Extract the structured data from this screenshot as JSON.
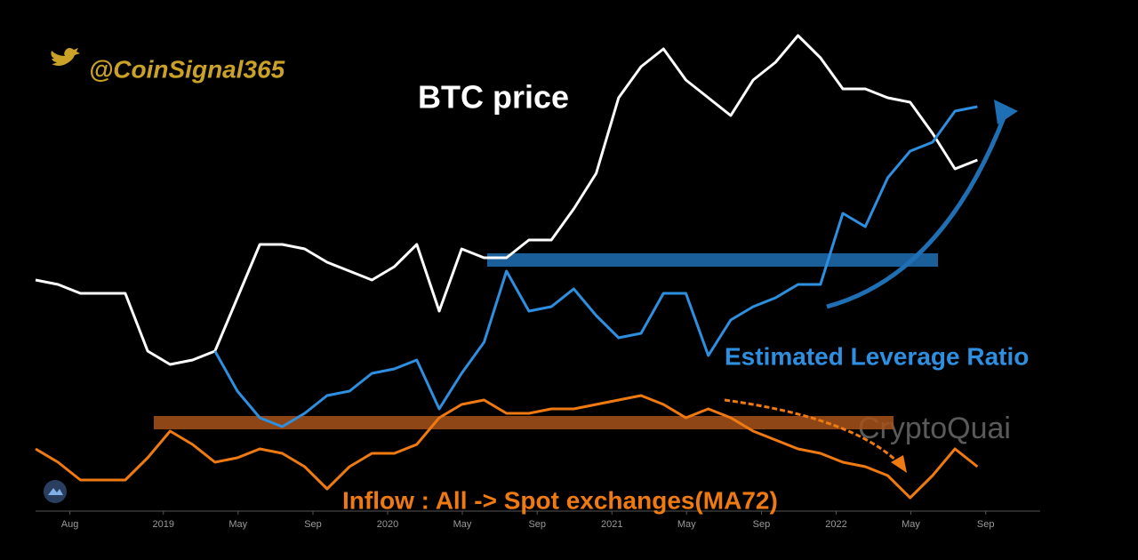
{
  "chart_data": {
    "type": "line",
    "handle": "@CoinSignal365",
    "watermark": "CryptoQuai",
    "x": [
      2018.43,
      2018.53,
      2018.63,
      2018.73,
      2018.83,
      2018.93,
      2019.03,
      2019.13,
      2019.23,
      2019.33,
      2019.43,
      2019.53,
      2019.63,
      2019.73,
      2019.83,
      2019.93,
      2020.03,
      2020.13,
      2020.23,
      2020.33,
      2020.43,
      2020.53,
      2020.63,
      2020.73,
      2020.83,
      2020.93,
      2021.03,
      2021.13,
      2021.23,
      2021.33,
      2021.43,
      2021.53,
      2021.63,
      2021.73,
      2021.83,
      2021.93,
      2022.03,
      2022.13,
      2022.23,
      2022.33,
      2022.43,
      2022.53,
      2022.63
    ],
    "series": [
      {
        "name": "BTC price",
        "color": "#ffffff",
        "values": [
          260,
          255,
          245,
          245,
          245,
          180,
          165,
          170,
          180,
          240,
          300,
          300,
          295,
          280,
          270,
          260,
          275,
          300,
          225,
          295,
          285,
          285,
          305,
          305,
          340,
          380,
          465,
          500,
          520,
          485,
          465,
          445,
          485,
          505,
          535,
          510,
          475,
          475,
          465,
          460,
          425,
          385,
          395
        ]
      },
      {
        "name": "Estimated Leverage Ratio",
        "color": "#2e8fe0",
        "values": [
          null,
          null,
          null,
          null,
          null,
          null,
          null,
          null,
          180,
          135,
          105,
          95,
          110,
          130,
          135,
          155,
          160,
          170,
          115,
          155,
          190,
          270,
          225,
          230,
          250,
          220,
          195,
          200,
          245,
          245,
          175,
          215,
          230,
          240,
          255,
          255,
          335,
          320,
          375,
          405,
          415,
          450,
          455
        ]
      },
      {
        "name": "Inflow : All -> Spot exchanges(MA72)",
        "color": "#f07a12",
        "values": [
          70,
          55,
          35,
          35,
          35,
          60,
          90,
          75,
          55,
          60,
          70,
          65,
          50,
          25,
          50,
          65,
          65,
          75,
          105,
          120,
          125,
          110,
          110,
          115,
          115,
          120,
          125,
          130,
          120,
          105,
          115,
          105,
          90,
          80,
          70,
          65,
          55,
          50,
          40,
          15,
          40,
          70,
          50
        ]
      }
    ],
    "xlim": [
      2018.43,
      2022.91
    ],
    "xticks": [
      {
        "value": 2018.583,
        "label": "Aug"
      },
      2019,
      {
        "value": 2019.333,
        "label": "May"
      },
      {
        "value": 2019.667,
        "label": "Sep"
      },
      2020,
      {
        "value": 2020.333,
        "label": "May"
      },
      {
        "value": 2020.667,
        "label": "Sep"
      },
      2021,
      {
        "value": 2021.333,
        "label": "May"
      },
      {
        "value": 2021.667,
        "label": "Sep"
      },
      2022,
      {
        "value": 2022.333,
        "label": "May"
      },
      {
        "value": 2022.667,
        "label": "Sep"
      }
    ],
    "ylim": [
      0,
      550
    ]
  }
}
